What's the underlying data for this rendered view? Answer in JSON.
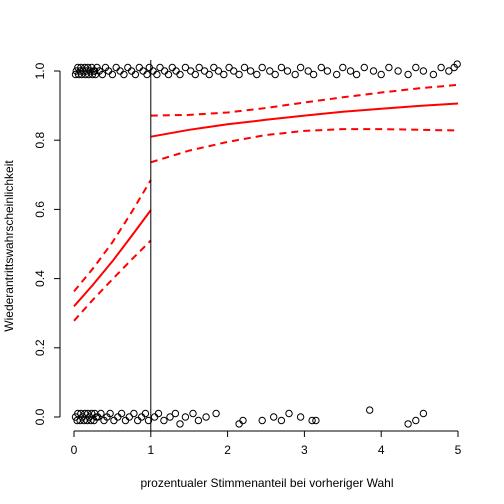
{
  "chart_data": {
    "type": "scatter",
    "title": "",
    "xlabel": "prozentualer Stimmenanteil bei vorheriger Wahl",
    "ylabel": "Wiederantrittswahrscheinlichkeit",
    "xlim": [
      0,
      5
    ],
    "ylim": [
      0,
      1
    ],
    "x_ticks": [
      "0",
      "1",
      "2",
      "3",
      "4",
      "5"
    ],
    "y_ticks": [
      "0.0",
      "0.2",
      "0.4",
      "0.6",
      "0.8",
      "1.0"
    ],
    "grid": false,
    "legend": "none",
    "cutoff_x": 1,
    "colors": {
      "fit": "#ff0000",
      "points": "#000000",
      "axes": "#000000"
    },
    "series": [
      {
        "role": "fit",
        "segment": "left",
        "style": "solid",
        "x": [
          0,
          0.25,
          0.5,
          0.75,
          1.0
        ],
        "y": [
          0.32,
          0.383,
          0.45,
          0.523,
          0.598
        ]
      },
      {
        "role": "upper",
        "segment": "left",
        "style": "dashed",
        "x": [
          0,
          0.25,
          0.5,
          0.75,
          1.0
        ],
        "y": [
          0.363,
          0.43,
          0.505,
          0.592,
          0.685
        ]
      },
      {
        "role": "lower",
        "segment": "left",
        "style": "dashed",
        "x": [
          0,
          0.25,
          0.5,
          0.75,
          1.0
        ],
        "y": [
          0.278,
          0.34,
          0.398,
          0.455,
          0.51
        ]
      },
      {
        "role": "fit",
        "segment": "right",
        "style": "solid",
        "x": [
          1,
          1.5,
          2,
          2.5,
          3,
          3.5,
          4,
          4.5,
          5
        ],
        "y": [
          0.81,
          0.83,
          0.846,
          0.859,
          0.871,
          0.882,
          0.891,
          0.899,
          0.906
        ]
      },
      {
        "role": "upper",
        "segment": "right",
        "style": "dashed",
        "x": [
          1,
          1.5,
          2,
          2.5,
          3,
          3.5,
          4,
          4.5,
          5
        ],
        "y": [
          0.871,
          0.873,
          0.88,
          0.893,
          0.909,
          0.924,
          0.938,
          0.95,
          0.96
        ]
      },
      {
        "role": "lower",
        "segment": "right",
        "style": "dashed",
        "x": [
          1,
          1.5,
          2,
          2.5,
          3,
          3.5,
          4,
          4.5,
          5
        ],
        "y": [
          0.736,
          0.77,
          0.795,
          0.815,
          0.827,
          0.832,
          0.832,
          0.83,
          0.828
        ]
      }
    ],
    "points_top": [
      [
        0.03,
        1.0
      ],
      [
        0.06,
        0.99
      ],
      [
        0.09,
        1.01
      ],
      [
        0.12,
        1.0
      ],
      [
        0.15,
        0.99
      ],
      [
        0.18,
        1.01
      ],
      [
        0.21,
        1.0
      ],
      [
        0.24,
        0.99
      ],
      [
        0.27,
        1.0
      ],
      [
        0.3,
        1.01
      ],
      [
        0.05,
        1.01
      ],
      [
        0.1,
        0.99
      ],
      [
        0.14,
        1.01
      ],
      [
        0.19,
        0.99
      ],
      [
        0.23,
        1.01
      ],
      [
        0.28,
        0.99
      ],
      [
        0.02,
        0.99
      ],
      [
        0.08,
        1.0
      ],
      [
        0.16,
        1.0
      ],
      [
        0.26,
        1.0
      ],
      [
        0.33,
        1.0
      ],
      [
        0.37,
        0.99
      ],
      [
        0.41,
        1.01
      ],
      [
        0.45,
        1.0
      ],
      [
        0.5,
        0.99
      ],
      [
        0.55,
        1.01
      ],
      [
        0.6,
        1.0
      ],
      [
        0.65,
        0.99
      ],
      [
        0.7,
        1.01
      ],
      [
        0.75,
        1.0
      ],
      [
        0.8,
        0.99
      ],
      [
        0.85,
        1.01
      ],
      [
        0.9,
        1.0
      ],
      [
        0.95,
        0.99
      ],
      [
        0.98,
        1.01
      ],
      [
        1.03,
        1.0
      ],
      [
        1.08,
        0.99
      ],
      [
        1.12,
        1.01
      ],
      [
        1.18,
        1.0
      ],
      [
        1.23,
        0.99
      ],
      [
        1.28,
        1.01
      ],
      [
        1.33,
        1.0
      ],
      [
        1.38,
        0.99
      ],
      [
        1.45,
        1.01
      ],
      [
        1.52,
        1.0
      ],
      [
        1.58,
        0.99
      ],
      [
        1.63,
        1.01
      ],
      [
        1.7,
        1.0
      ],
      [
        1.76,
        0.99
      ],
      [
        1.82,
        1.01
      ],
      [
        1.88,
        1.0
      ],
      [
        1.95,
        0.99
      ],
      [
        2.02,
        1.01
      ],
      [
        2.08,
        1.0
      ],
      [
        2.15,
        0.99
      ],
      [
        2.22,
        1.01
      ],
      [
        2.3,
        1.0
      ],
      [
        2.38,
        0.99
      ],
      [
        2.45,
        1.01
      ],
      [
        2.55,
        1.0
      ],
      [
        2.62,
        0.99
      ],
      [
        2.7,
        1.01
      ],
      [
        2.78,
        1.0
      ],
      [
        2.88,
        0.99
      ],
      [
        2.95,
        1.01
      ],
      [
        3.05,
        1.0
      ],
      [
        3.12,
        0.99
      ],
      [
        3.22,
        1.01
      ],
      [
        3.3,
        1.0
      ],
      [
        3.42,
        0.99
      ],
      [
        3.5,
        1.01
      ],
      [
        3.6,
        1.0
      ],
      [
        3.68,
        0.99
      ],
      [
        3.78,
        1.01
      ],
      [
        3.9,
        1.0
      ],
      [
        4.0,
        0.99
      ],
      [
        4.1,
        1.01
      ],
      [
        4.22,
        1.0
      ],
      [
        4.35,
        0.99
      ],
      [
        4.45,
        1.01
      ],
      [
        4.55,
        1.0
      ],
      [
        4.68,
        0.99
      ],
      [
        4.78,
        1.01
      ],
      [
        4.88,
        1.0
      ],
      [
        4.95,
        1.01
      ],
      [
        4.99,
        1.02
      ]
    ],
    "points_bottom": [
      [
        0.02,
        0.0
      ],
      [
        0.05,
        0.01
      ],
      [
        0.08,
        -0.01
      ],
      [
        0.11,
        0.0
      ],
      [
        0.14,
        0.01
      ],
      [
        0.17,
        -0.01
      ],
      [
        0.2,
        0.0
      ],
      [
        0.23,
        0.01
      ],
      [
        0.26,
        -0.01
      ],
      [
        0.29,
        0.0
      ],
      [
        0.04,
        -0.01
      ],
      [
        0.09,
        0.01
      ],
      [
        0.13,
        -0.01
      ],
      [
        0.18,
        0.01
      ],
      [
        0.22,
        -0.01
      ],
      [
        0.27,
        0.01
      ],
      [
        0.31,
        0.0
      ],
      [
        0.35,
        0.01
      ],
      [
        0.39,
        -0.01
      ],
      [
        0.43,
        0.0
      ],
      [
        0.47,
        0.01
      ],
      [
        0.52,
        -0.01
      ],
      [
        0.57,
        0.0
      ],
      [
        0.62,
        0.01
      ],
      [
        0.67,
        -0.01
      ],
      [
        0.72,
        0.0
      ],
      [
        0.78,
        0.01
      ],
      [
        0.83,
        -0.01
      ],
      [
        0.88,
        0.0
      ],
      [
        0.93,
        0.01
      ],
      [
        0.97,
        -0.01
      ],
      [
        1.05,
        0.0
      ],
      [
        1.1,
        0.01
      ],
      [
        1.17,
        -0.01
      ],
      [
        1.25,
        0.0
      ],
      [
        1.32,
        0.01
      ],
      [
        1.38,
        -0.02
      ],
      [
        1.45,
        0.0
      ],
      [
        1.55,
        0.01
      ],
      [
        1.62,
        -0.01
      ],
      [
        1.72,
        0.0
      ],
      [
        1.85,
        0.01
      ],
      [
        2.15,
        -0.02
      ],
      [
        2.2,
        -0.01
      ],
      [
        2.45,
        -0.01
      ],
      [
        2.6,
        0.0
      ],
      [
        2.7,
        -0.01
      ],
      [
        2.8,
        0.01
      ],
      [
        2.95,
        0.0
      ],
      [
        3.1,
        -0.01
      ],
      [
        3.15,
        -0.01
      ],
      [
        3.85,
        0.02
      ],
      [
        4.35,
        -0.02
      ],
      [
        4.45,
        -0.01
      ],
      [
        4.55,
        0.01
      ]
    ]
  }
}
